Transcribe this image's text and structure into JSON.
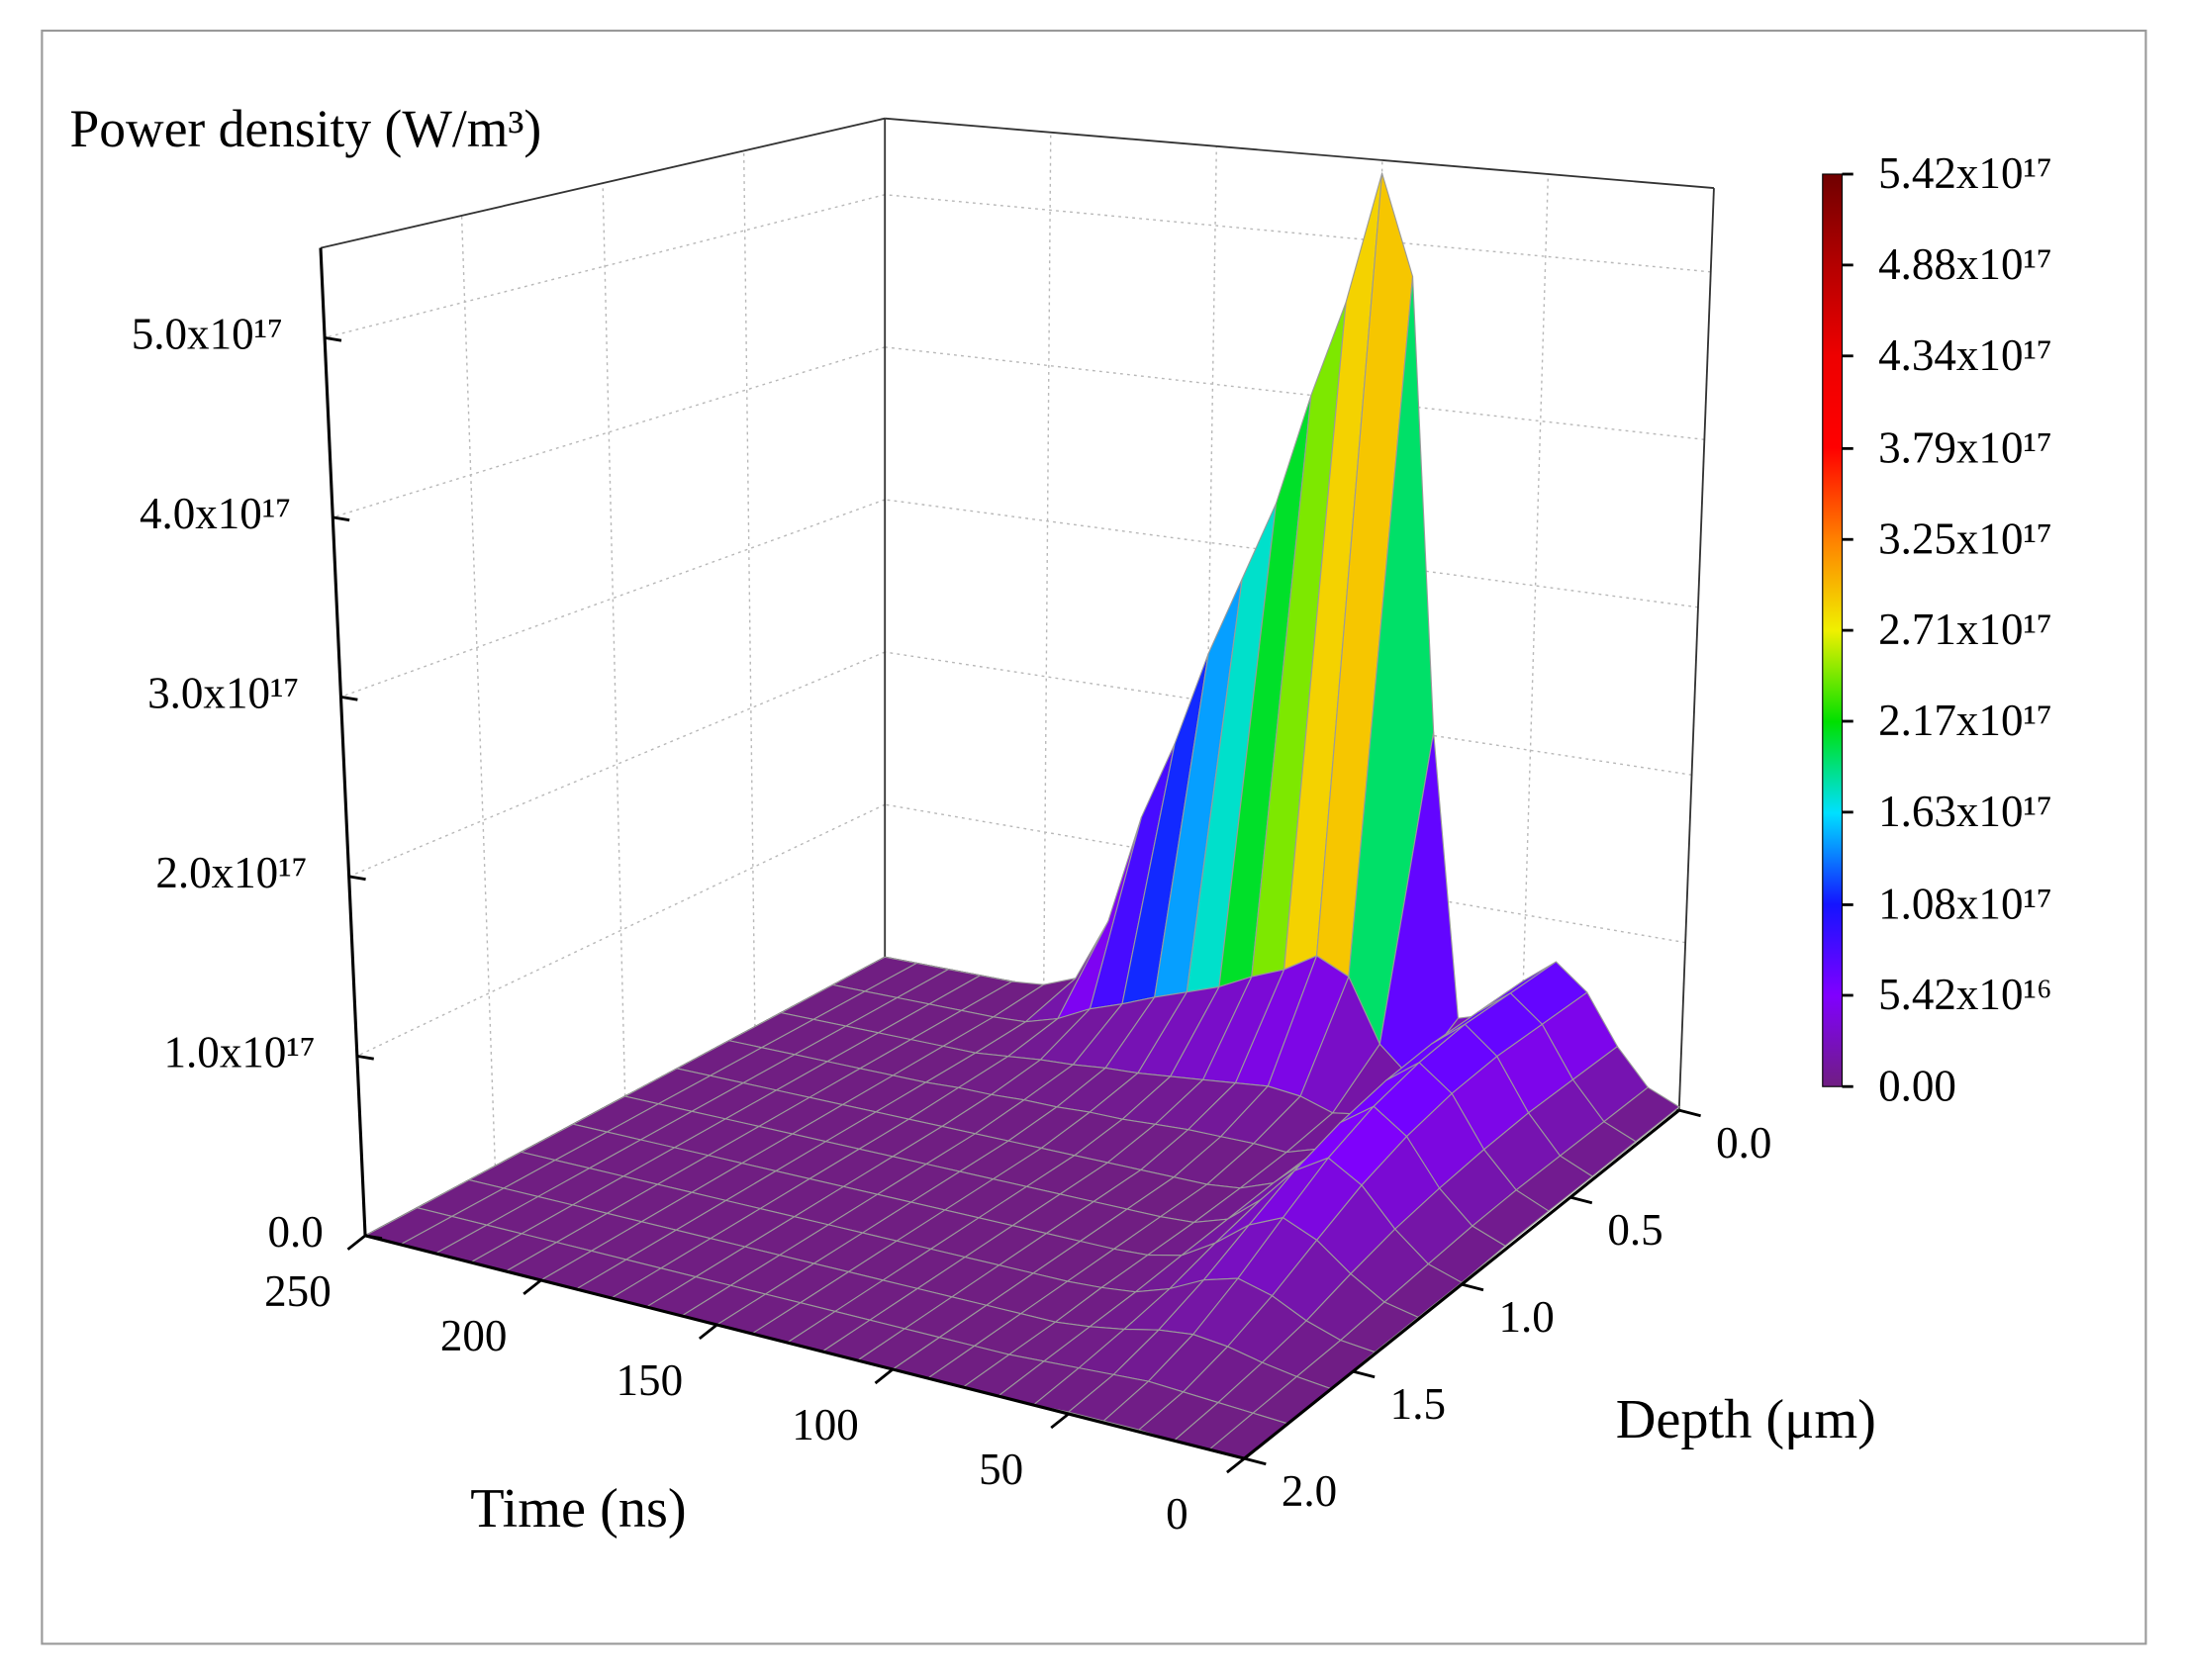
{
  "chart_data": {
    "type": "surface3d",
    "zlabel": "Power density (W/m³)",
    "xlabel": "Time (ns)",
    "ylabel": "Depth (μm)",
    "xlim": [
      0,
      250
    ],
    "ylim": [
      0,
      2
    ],
    "zlim": [
      0,
      5.5e+17
    ],
    "xticks": [
      0,
      50,
      100,
      150,
      200,
      250
    ],
    "yticks": [
      {
        "value": 0,
        "label": "0.0"
      },
      0.5,
      {
        "value": 1,
        "label": "1.0"
      },
      1.5,
      {
        "value": 2,
        "label": "2.0"
      }
    ],
    "zticks": [
      {
        "value": 0,
        "label": "0.0"
      },
      {
        "value": 1e+17,
        "label": "1.0x10¹⁷"
      },
      {
        "value": 2e+17,
        "label": "2.0x10¹⁷"
      },
      {
        "value": 3e+17,
        "label": "3.0x10¹⁷"
      },
      {
        "value": 4e+17,
        "label": "4.0x10¹⁷"
      },
      {
        "value": 5e+17,
        "label": "5.0x10¹⁷"
      }
    ],
    "grid": true,
    "clim": [
      0,
      5.42e+17
    ],
    "cticks": [
      {
        "value": 0,
        "label": "0.00"
      },
      {
        "value": 5.42e+16,
        "label": "5.42x10¹⁶"
      },
      {
        "value": 1.08e+17,
        "label": "1.08x10¹⁷"
      },
      {
        "value": 1.63e+17,
        "label": "1.63x10¹⁷"
      },
      {
        "value": 2.17e+17,
        "label": "2.17x10¹⁷"
      },
      {
        "value": 2.71e+17,
        "label": "2.71x10¹⁷"
      },
      {
        "value": 3.25e+17,
        "label": "3.25x10¹⁷"
      },
      {
        "value": 3.79e+17,
        "label": "3.79x10¹⁷"
      },
      {
        "value": 4.34e+17,
        "label": "4.34x10¹⁷"
      },
      {
        "value": 4.88e+17,
        "label": "4.88x10¹⁷"
      },
      {
        "value": 5.42e+17,
        "label": "5.42x10¹⁷"
      }
    ],
    "colormap": [
      "#701e82",
      "#8000ff",
      "#1414ff",
      "#00e0ff",
      "#00e000",
      "#f0f000",
      "#ff8000",
      "#ff0000",
      "#ee0000",
      "#b40000",
      "#700000"
    ],
    "mesh_color": "#9a9a9a",
    "time": [
      0,
      10,
      20,
      30,
      40,
      50,
      60,
      70,
      80,
      90,
      100,
      110,
      120,
      130,
      140,
      150,
      160,
      170,
      180,
      190,
      200,
      210,
      220,
      230,
      240,
      250
    ],
    "depth": [
      0,
      0.2,
      0.4,
      0.6,
      0.8,
      1.0,
      1.2,
      1.4,
      1.6,
      1.8,
      2.0
    ],
    "z": [
      [
        2000000000000000.0,
        2000000000000000.0,
        2000000000000000.0,
        2000000000000000.0,
        2000000000000000.0,
        1000000000000000.0,
        1000000000000000.0,
        1000000000000000.0,
        0,
        0,
        0
      ],
      [
        1e+16,
        1e+16,
        1e+16,
        1e+16,
        9000000000000000.0,
        7000000000000000.0,
        5000000000000000.0,
        3000000000000000.0,
        2000000000000000.0,
        1000000000000000.0,
        0
      ],
      [
        3.1e+16,
        3.1e+16,
        3.1e+16,
        2.9e+16,
        2.6e+16,
        2.2e+16,
        1.6e+16,
        9000000000000000.0,
        5000000000000000.0,
        2000000000000000.0,
        0
      ],
      [
        6e+16,
        6e+16,
        6e+16,
        5.7e+16,
        5.1e+16,
        4.2e+16,
        3e+16,
        1.8e+16,
        9000000000000000.0,
        3000000000000000.0,
        1000000000000000.0
      ],
      [
        7.5e+16,
        7.5e+16,
        7.5e+16,
        7.1e+16,
        6.4e+16,
        5.3e+16,
        3.8e+16,
        2.3e+16,
        1.1e+16,
        4000000000000000.0,
        1000000000000000.0
      ],
      [
        6e+16,
        6e+16,
        6e+16,
        5.7e+16,
        5.1e+16,
        4.2e+16,
        3e+16,
        1.8e+16,
        9000000000000000.0,
        3000000000000000.0,
        1000000000000000.0
      ],
      [
        3.6e+16,
        3.2e+16,
        3.1e+16,
        2.9e+16,
        2.6e+16,
        2.2e+16,
        1.6e+16,
        9000000000000000.0,
        5000000000000000.0,
        2000000000000000.0,
        0
      ],
      [
        3e+16,
        1.3e+16,
        1.1e+16,
        1e+16,
        9000000000000000.0,
        7000000000000000.0,
        5000000000000000.0,
        3000000000000000.0,
        2000000000000000.0,
        1000000000000000.0,
        0
      ],
      [
        2.02e+17,
        3e+16,
        8000000000000000.0,
        4000000000000000.0,
        2000000000000000.0,
        1000000000000000.0,
        1000000000000000.0,
        1000000000000000.0,
        0,
        0,
        0
      ],
      [
        4.8e+17,
        6.7e+16,
        1.4e+16,
        5000000000000000.0,
        0,
        0,
        0,
        0,
        0,
        0,
        0
      ],
      [
        5.42e+17,
        7.6e+16,
        1.6e+16,
        5000000000000000.0,
        0,
        0,
        0,
        0,
        0,
        0,
        0
      ],
      [
        4.6e+17,
        6.4e+16,
        1.4e+16,
        5000000000000000.0,
        0,
        0,
        0,
        0,
        0,
        0,
        0
      ],
      [
        4e+17,
        5.6e+16,
        1.2e+16,
        4000000000000000.0,
        0,
        0,
        0,
        0,
        0,
        0,
        0
      ],
      [
        3.3e+17,
        4.6e+16,
        1e+16,
        3000000000000000.0,
        0,
        0,
        0,
        0,
        0,
        0,
        0
      ],
      [
        2.8e+17,
        3.9e+16,
        8000000000000000.0,
        3000000000000000.0,
        0,
        0,
        0,
        0,
        0,
        0,
        0
      ],
      [
        2.3e+17,
        3.2e+16,
        7000000000000000.0,
        2000000000000000.0,
        0,
        0,
        0,
        0,
        0,
        0,
        0
      ],
      [
        1.7e+17,
        2.4e+16,
        5000000000000000.0,
        2000000000000000.0,
        0,
        0,
        0,
        0,
        0,
        0,
        0
      ],
      [
        1.2e+17,
        1.7e+16,
        4000000000000000.0,
        1000000000000000.0,
        0,
        0,
        0,
        0,
        0,
        0,
        0
      ],
      [
        5e+16,
        7000000000000000.0,
        2000000000000000.0,
        1000000000000000.0,
        0,
        0,
        0,
        0,
        0,
        0,
        0
      ],
      [
        1e+16,
        1000000000000000.0,
        0,
        0,
        0,
        0,
        0,
        0,
        0,
        0,
        0
      ],
      [
        2000000000000000.0,
        0,
        0,
        0,
        0,
        0,
        0,
        0,
        0,
        0,
        0
      ],
      [
        0,
        0,
        0,
        0,
        0,
        0,
        0,
        0,
        0,
        0,
        0
      ],
      [
        0,
        0,
        0,
        0,
        0,
        0,
        0,
        0,
        0,
        0,
        0
      ],
      [
        0,
        0,
        0,
        0,
        0,
        0,
        0,
        0,
        0,
        0,
        0
      ],
      [
        0,
        0,
        0,
        0,
        0,
        0,
        0,
        0,
        0,
        0,
        0
      ],
      [
        0,
        0,
        0,
        0,
        0,
        0,
        0,
        0,
        0,
        0,
        0
      ]
    ]
  }
}
